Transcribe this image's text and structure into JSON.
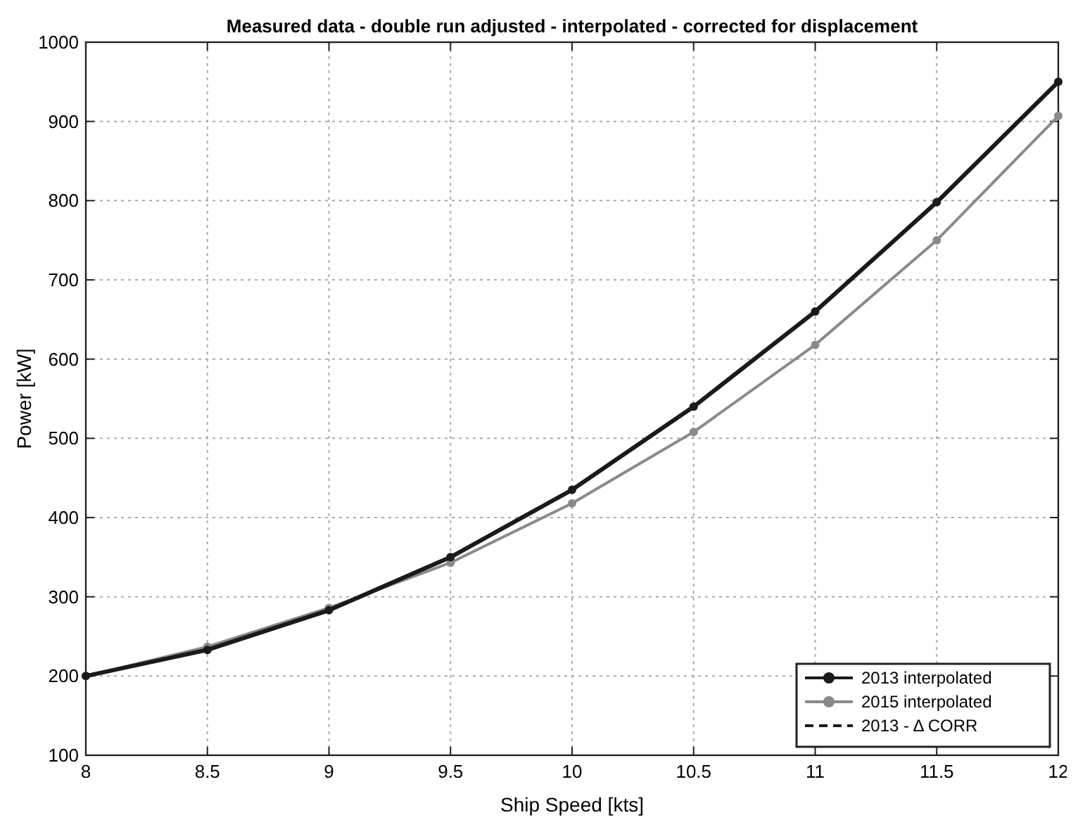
{
  "chart_data": {
    "type": "line",
    "title": "Measured data - double run adjusted - interpolated - corrected for displacement",
    "xlabel": "Ship Speed [kts]",
    "ylabel": "Power [kW]",
    "x": [
      8,
      8.5,
      9,
      9.5,
      10,
      10.5,
      11,
      11.5,
      12
    ],
    "series": [
      {
        "name": "2013 interpolated",
        "color": "#1a1a1a",
        "values": [
          200,
          233,
          283,
          350,
          435,
          540,
          660,
          798,
          950
        ],
        "marker": "circle",
        "line_style": "solid"
      },
      {
        "name": "2015 interpolated",
        "color": "#8a8a8a",
        "values": [
          200,
          237,
          286,
          343,
          418,
          508,
          618,
          750,
          907
        ],
        "marker": "circle",
        "line_style": "solid"
      },
      {
        "name": "2013 - Δ CORR",
        "color": "#1a1a1a",
        "values": [
          null,
          null,
          null,
          null,
          null,
          null,
          null,
          null,
          null
        ],
        "marker": "none",
        "line_style": "dashed"
      }
    ],
    "xlim": [
      8,
      12
    ],
    "ylim": [
      100,
      1000
    ],
    "xticks": [
      8,
      8.5,
      9,
      9.5,
      10,
      10.5,
      11,
      11.5,
      12
    ],
    "yticks": [
      100,
      200,
      300,
      400,
      500,
      600,
      700,
      800,
      900,
      1000
    ],
    "grid": true,
    "legend": "bottom right"
  }
}
